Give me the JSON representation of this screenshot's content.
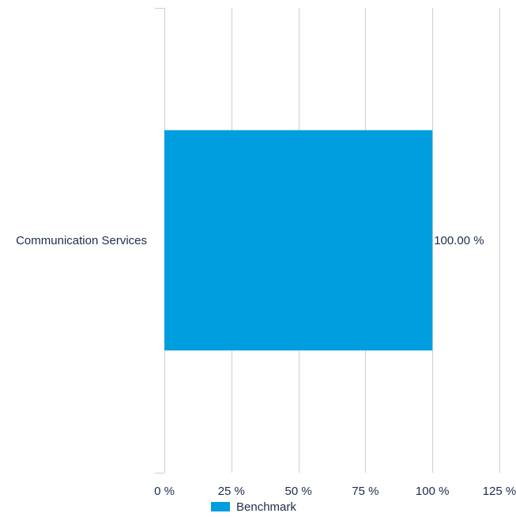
{
  "chart_data": {
    "type": "bar",
    "orientation": "horizontal",
    "categories": [
      "Communication Services"
    ],
    "series": [
      {
        "name": "Benchmark",
        "values": [
          100.0
        ],
        "value_labels": [
          "100.00 %"
        ],
        "color": "#009ddf"
      }
    ],
    "xlim": [
      0,
      125
    ],
    "x_ticks": [
      0,
      25,
      50,
      75,
      100,
      125
    ],
    "x_tick_labels": [
      "0 %",
      "25 %",
      "50 %",
      "75 %",
      "100 %",
      "125 %"
    ],
    "grid": "vertical",
    "legend_position": "bottom",
    "text_color": "#1e2c4d",
    "grid_color": "#c6d3df"
  }
}
